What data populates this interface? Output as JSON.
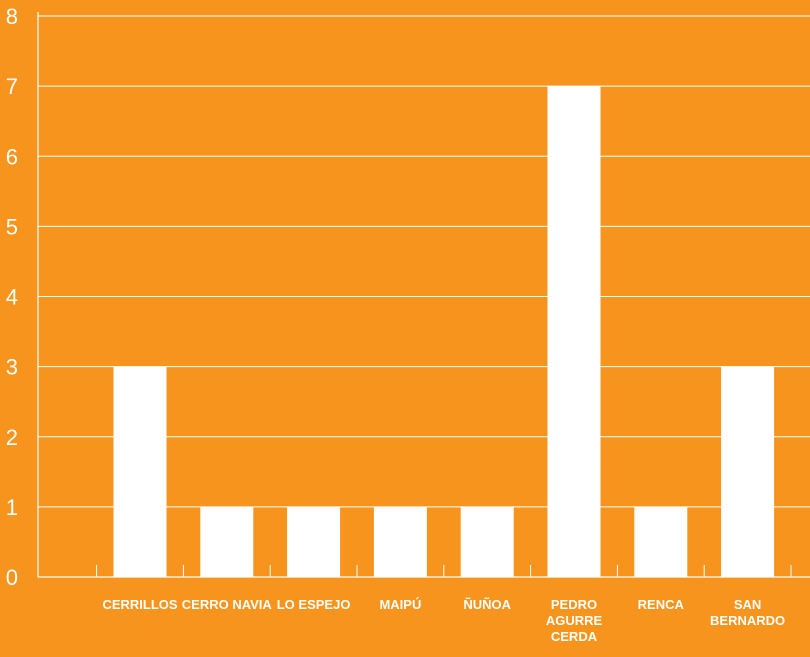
{
  "chart_data": {
    "type": "bar",
    "categories": [
      "CERRILLOS",
      "CERRO NAVIA",
      "LO ESPEJO",
      "MAIPÚ",
      "ÑUÑOA",
      "PEDRO AGURRE CERDA",
      "RENCA",
      "SAN BERNARDO"
    ],
    "category_lines": [
      [
        "CERRILLOS"
      ],
      [
        "CERRO NAVIA"
      ],
      [
        "LO ESPEJO"
      ],
      [
        "MAIPÚ"
      ],
      [
        "ÑUÑOA"
      ],
      [
        "PEDRO",
        "AGURRE",
        "CERDA"
      ],
      [
        "RENCA"
      ],
      [
        "SAN",
        "BERNARDO"
      ]
    ],
    "values": [
      3,
      1,
      1,
      1,
      1,
      7,
      1,
      3
    ],
    "ylim": [
      0,
      8
    ],
    "yticks": [
      "0",
      "1",
      "2",
      "3",
      "4",
      "5",
      "6",
      "7",
      "8"
    ],
    "grid": true,
    "colors": {
      "background": "#f7941d",
      "bar": "#ffffff",
      "grid": "#ffffff"
    }
  }
}
